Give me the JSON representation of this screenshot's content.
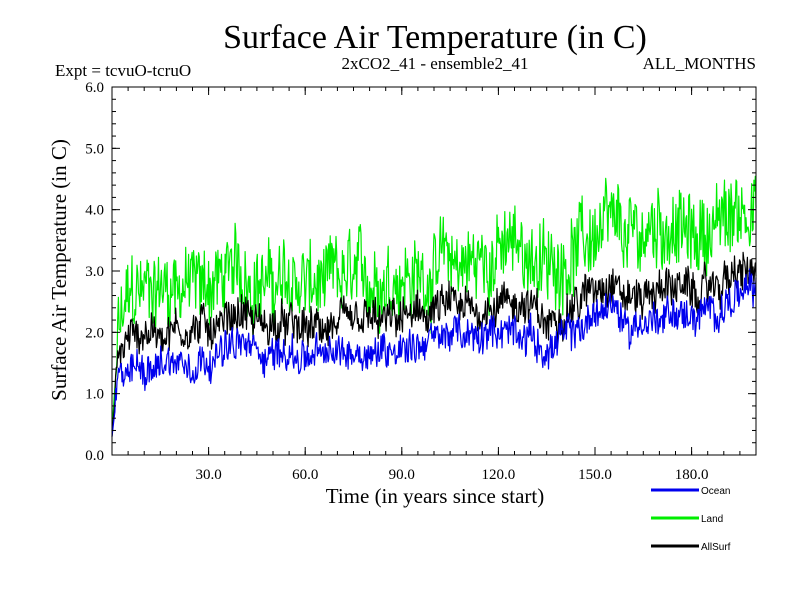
{
  "chart_data": {
    "type": "line",
    "title": "Surface Air Temperature (in C)",
    "subtitle_left": "Expt = tcvuO-tcruO",
    "subtitle_center": "2xCO2_41 - ensemble2_41",
    "subtitle_right": "ALL_MONTHS",
    "xlabel": "Time (in years since start)",
    "ylabel": "Surface Air Temperature (in C)",
    "xlim": [
      0,
      200
    ],
    "ylim": [
      0,
      6
    ],
    "x_ticks": [
      30,
      60,
      90,
      120,
      150,
      180
    ],
    "x_tick_labels": [
      "30.0",
      "60.0",
      "90.0",
      "120.0",
      "150.0",
      "180.0"
    ],
    "y_ticks": [
      0,
      1,
      2,
      3,
      4,
      5,
      6
    ],
    "y_tick_labels": [
      "0.0",
      "1.0",
      "2.0",
      "3.0",
      "4.0",
      "5.0",
      "6.0"
    ],
    "legend_position": "bottom-right",
    "x": [
      0,
      2,
      4,
      6,
      10,
      15,
      20,
      25,
      30,
      35,
      40,
      45,
      50,
      55,
      60,
      65,
      70,
      75,
      80,
      85,
      90,
      95,
      100,
      105,
      110,
      115,
      120,
      125,
      130,
      135,
      140,
      145,
      150,
      155,
      160,
      165,
      170,
      175,
      180,
      185,
      190,
      195,
      200
    ],
    "series": [
      {
        "name": "Land",
        "color": "#00ee00",
        "values": [
          0.4,
          2.0,
          2.4,
          2.6,
          2.7,
          2.75,
          2.8,
          2.75,
          2.8,
          2.9,
          3.0,
          2.85,
          2.75,
          2.8,
          2.8,
          2.7,
          2.85,
          2.9,
          2.85,
          2.9,
          2.95,
          2.85,
          3.0,
          3.2,
          3.1,
          3.15,
          3.3,
          3.4,
          3.3,
          3.0,
          3.2,
          3.4,
          3.6,
          3.7,
          3.5,
          3.6,
          3.8,
          3.7,
          3.5,
          3.7,
          3.8,
          4.0,
          4.2
        ]
      },
      {
        "name": "AllSurf",
        "color": "#000000",
        "values": [
          0.3,
          1.6,
          1.8,
          1.95,
          2.0,
          2.0,
          2.05,
          2.05,
          2.1,
          2.2,
          2.35,
          2.15,
          2.1,
          2.1,
          2.05,
          2.05,
          2.1,
          2.15,
          2.2,
          2.15,
          2.25,
          2.25,
          2.35,
          2.45,
          2.35,
          2.35,
          2.5,
          2.5,
          2.4,
          2.1,
          2.35,
          2.5,
          2.75,
          2.9,
          2.55,
          2.6,
          2.7,
          2.8,
          2.6,
          2.7,
          2.85,
          2.95,
          3.0
        ]
      },
      {
        "name": "Ocean",
        "color": "#0000ee",
        "values": [
          0.3,
          1.2,
          1.3,
          1.4,
          1.45,
          1.5,
          1.55,
          1.5,
          1.6,
          1.7,
          1.8,
          1.7,
          1.65,
          1.65,
          1.6,
          1.6,
          1.65,
          1.7,
          1.7,
          1.7,
          1.8,
          1.8,
          1.9,
          2.0,
          1.9,
          1.9,
          2.05,
          2.05,
          1.95,
          1.65,
          1.9,
          2.05,
          2.3,
          2.45,
          2.1,
          2.15,
          2.25,
          2.35,
          2.2,
          2.3,
          2.45,
          2.6,
          2.7
        ]
      }
    ]
  }
}
